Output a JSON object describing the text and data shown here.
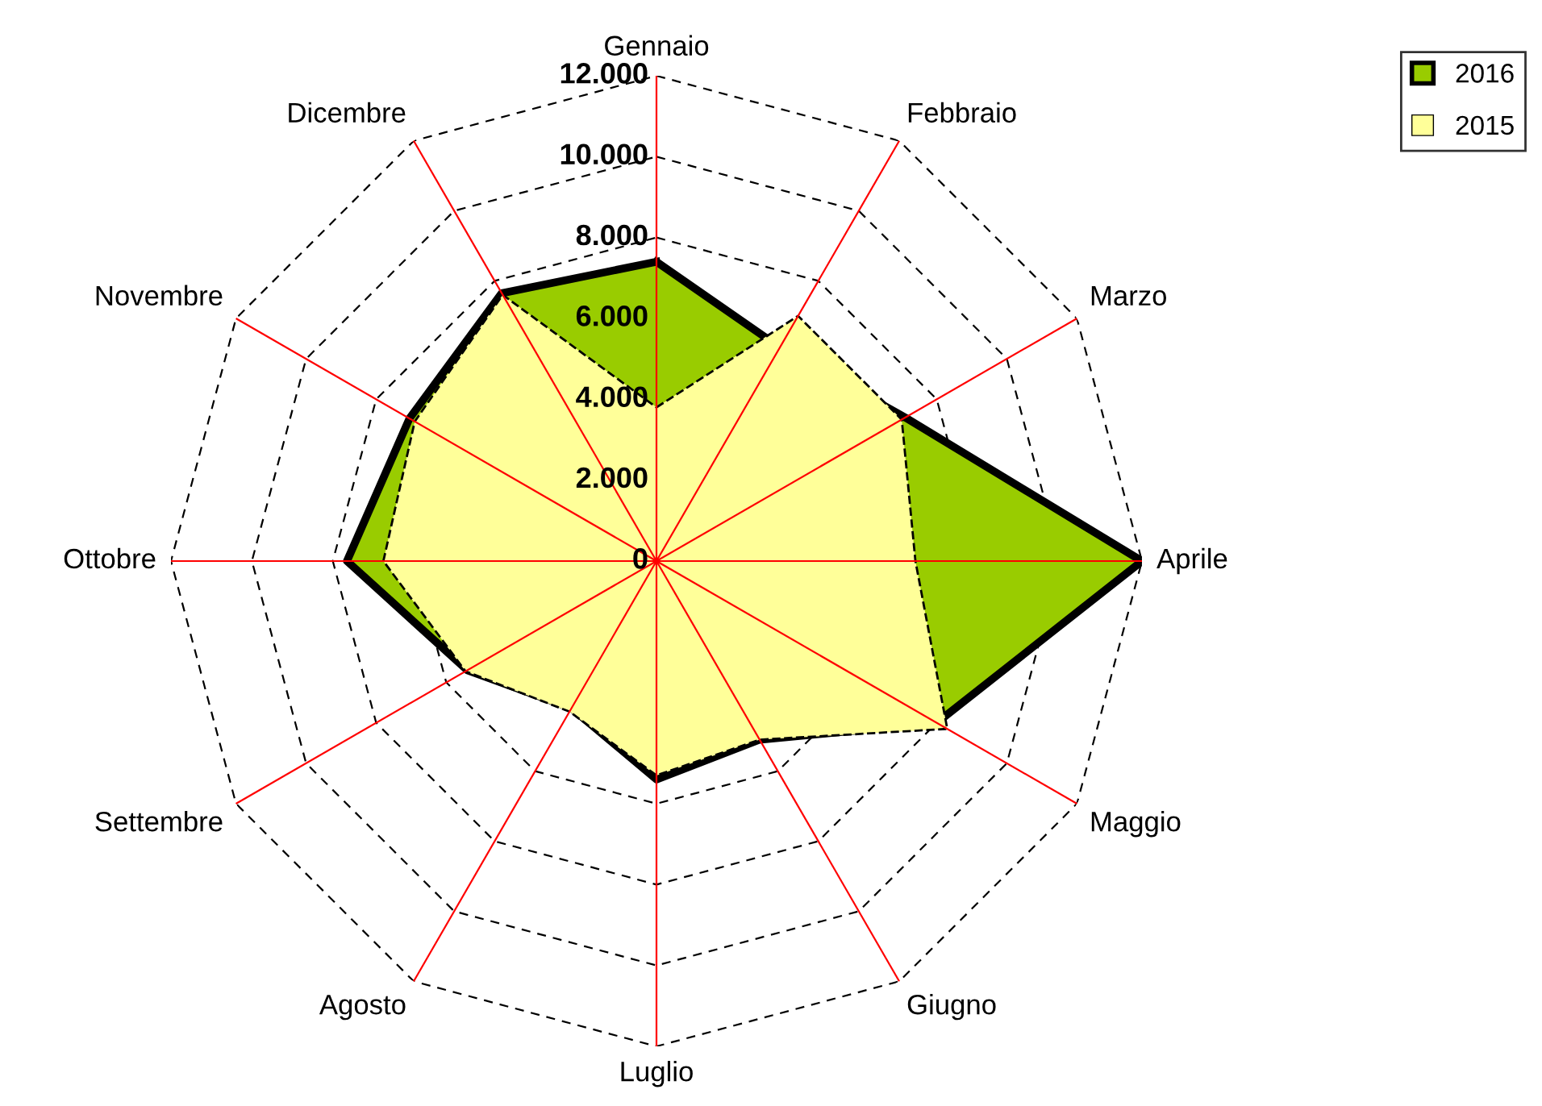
{
  "chart_data": {
    "type": "radar",
    "categories": [
      "Gennaio",
      "Febbraio",
      "Marzo",
      "Aprile",
      "Maggio",
      "Giugno",
      "Luglio",
      "Agosto",
      "Settembre",
      "Ottobre",
      "Novembre",
      "Dicembre"
    ],
    "series": [
      {
        "name": "2016",
        "color": "#99cc00",
        "values": [
          7400,
          6100,
          7100,
          12000,
          8000,
          5100,
          5400,
          4200,
          5400,
          7650,
          7050,
          7650
        ]
      },
      {
        "name": "2015",
        "color": "#ffff99",
        "line_style": "dashed",
        "values": [
          3800,
          7000,
          7000,
          6400,
          8300,
          5100,
          5300,
          4300,
          5450,
          6750,
          6900,
          7600
        ]
      }
    ],
    "ylim": [
      0,
      12000
    ],
    "yticks": [
      {
        "value": 0,
        "label": "0"
      },
      {
        "value": 2000,
        "label": "2.000"
      },
      {
        "value": 4000,
        "label": "4.000"
      },
      {
        "value": 6000,
        "label": "6.000"
      },
      {
        "value": 8000,
        "label": "8.000"
      },
      {
        "value": 10000,
        "label": "10.000"
      },
      {
        "value": 12000,
        "label": "12.000"
      }
    ],
    "grid": true,
    "legend": "top right"
  }
}
